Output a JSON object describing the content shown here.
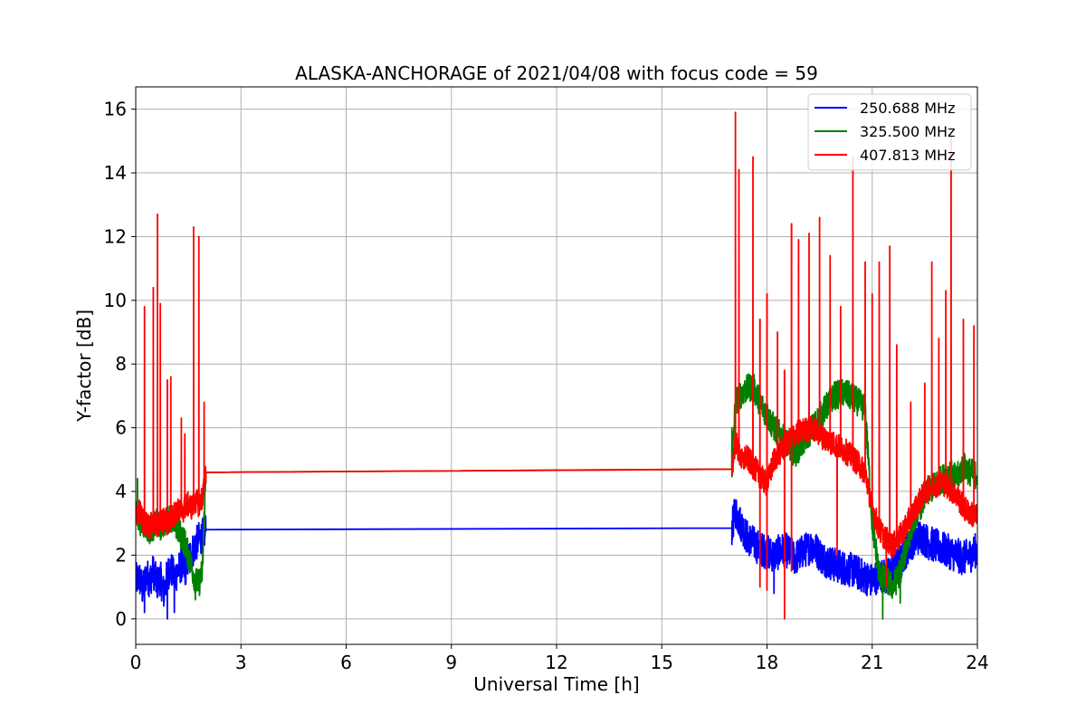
{
  "chart_data": {
    "type": "line",
    "title": "ALASKA-ANCHORAGE of 2021/04/08 with focus code = 59",
    "xlabel": "Universal Time [h]",
    "ylabel": "Y-factor [dB]",
    "xlim": [
      0,
      24
    ],
    "ylim": [
      -0.8,
      16.7
    ],
    "xticks": [
      0,
      3,
      6,
      9,
      12,
      15,
      18,
      21,
      24
    ],
    "yticks": [
      0,
      2,
      4,
      6,
      8,
      10,
      12,
      14,
      16
    ],
    "grid": true,
    "legend_position": "top-right",
    "series": [
      {
        "name": "250.688 MHz",
        "color": "#0000ff",
        "x": [
          0,
          0.1,
          0.2,
          0.3,
          0.4,
          0.5,
          0.6,
          0.7,
          0.8,
          0.9,
          1.0,
          1.1,
          1.2,
          1.3,
          1.4,
          1.5,
          1.6,
          1.7,
          1.8,
          1.9,
          2.0,
          17.0,
          17.1,
          17.2,
          17.3,
          17.4,
          17.6,
          17.8,
          18.0,
          18.2,
          18.5,
          18.8,
          19.0,
          19.3,
          19.6,
          19.9,
          20.2,
          20.5,
          20.8,
          21.0,
          21.2,
          21.4,
          21.6,
          21.8,
          22.0,
          22.2,
          22.4,
          22.6,
          22.8,
          23.0,
          23.2,
          23.4,
          23.6,
          23.8,
          24.0
        ],
        "y": [
          1.2,
          1.3,
          0.9,
          1.4,
          1.2,
          1.5,
          1.1,
          1.3,
          0.8,
          1.4,
          1.6,
          1.3,
          1.5,
          1.7,
          1.5,
          1.9,
          2.1,
          2.3,
          2.5,
          2.6,
          2.8,
          2.85,
          3.4,
          3.1,
          2.9,
          2.6,
          2.4,
          2.2,
          2.1,
          2.0,
          2.2,
          1.9,
          2.1,
          2.3,
          1.9,
          1.7,
          1.6,
          1.5,
          1.3,
          1.2,
          1.4,
          1.3,
          1.6,
          1.8,
          2.2,
          2.5,
          2.6,
          2.4,
          2.3,
          2.2,
          2.1,
          2.0,
          1.9,
          2.0,
          2.2
        ]
      },
      {
        "name": "325.500 MHz",
        "color": "#008000",
        "x": [
          0,
          0.1,
          0.2,
          0.3,
          0.4,
          0.5,
          0.6,
          0.7,
          0.8,
          0.9,
          1.0,
          1.1,
          1.2,
          1.3,
          1.4,
          1.5,
          1.6,
          1.7,
          1.8,
          1.9,
          2.0,
          17.0,
          17.1,
          17.2,
          17.3,
          17.4,
          17.6,
          17.8,
          18.0,
          18.2,
          18.5,
          18.8,
          19.0,
          19.3,
          19.6,
          19.9,
          20.2,
          20.5,
          20.8,
          21.0,
          21.2,
          21.4,
          21.6,
          21.8,
          22.0,
          22.2,
          22.4,
          22.6,
          22.8,
          23.0,
          23.2,
          23.4,
          23.6,
          23.8,
          24.0
        ],
        "y": [
          3.3,
          3.1,
          3.0,
          2.9,
          2.8,
          2.9,
          3.0,
          2.9,
          3.0,
          3.1,
          3.2,
          3.0,
          2.8,
          2.6,
          2.4,
          2.0,
          1.6,
          1.2,
          1.1,
          1.5,
          4.6,
          4.7,
          6.8,
          7.0,
          7.1,
          7.2,
          7.3,
          6.8,
          6.4,
          6.0,
          5.6,
          5.2,
          5.5,
          6.0,
          6.5,
          7.0,
          7.1,
          6.9,
          6.6,
          3.0,
          1.4,
          1.2,
          1.0,
          1.5,
          2.4,
          3.2,
          3.6,
          4.0,
          4.2,
          4.4,
          4.6,
          4.4,
          4.8,
          4.6,
          4.5
        ]
      },
      {
        "name": "407.813 MHz",
        "color": "#ff0000",
        "x": [
          0,
          0.1,
          0.2,
          0.3,
          0.4,
          0.5,
          0.6,
          0.7,
          0.8,
          0.9,
          1.0,
          1.1,
          1.2,
          1.3,
          1.4,
          1.5,
          1.6,
          1.7,
          1.8,
          1.9,
          2.0,
          17.0,
          17.1,
          17.2,
          17.3,
          17.4,
          17.6,
          17.8,
          18.0,
          18.2,
          18.5,
          18.8,
          19.0,
          19.3,
          19.6,
          19.9,
          20.2,
          20.5,
          20.8,
          21.0,
          21.2,
          21.4,
          21.6,
          21.8,
          22.0,
          22.2,
          22.4,
          22.6,
          22.8,
          23.0,
          23.2,
          23.4,
          23.6,
          23.8,
          24.0
        ],
        "y": [
          3.2,
          3.4,
          3.1,
          3.0,
          2.9,
          3.0,
          2.9,
          3.0,
          3.1,
          3.0,
          3.1,
          3.3,
          3.4,
          3.3,
          3.5,
          3.6,
          3.5,
          3.7,
          3.6,
          3.8,
          4.6,
          4.7,
          5.6,
          5.2,
          4.9,
          5.1,
          4.8,
          4.5,
          4.2,
          5.0,
          5.4,
          5.8,
          5.9,
          6.0,
          5.7,
          5.5,
          5.3,
          5.0,
          4.6,
          3.5,
          2.8,
          2.5,
          2.3,
          2.6,
          3.0,
          3.4,
          3.8,
          4.1,
          4.2,
          4.3,
          4.1,
          3.9,
          3.5,
          3.3,
          3.2
        ]
      }
    ],
    "spikes": {
      "407.813 MHz": [
        [
          0.25,
          9.8
        ],
        [
          0.5,
          10.4
        ],
        [
          0.62,
          12.7
        ],
        [
          0.7,
          9.9
        ],
        [
          0.9,
          7.5
        ],
        [
          1.0,
          7.6
        ],
        [
          1.3,
          6.3
        ],
        [
          1.4,
          5.8
        ],
        [
          1.65,
          12.3
        ],
        [
          1.8,
          12.0
        ],
        [
          1.95,
          6.8
        ],
        [
          17.1,
          15.9
        ],
        [
          17.2,
          14.1
        ],
        [
          17.6,
          14.5
        ],
        [
          17.8,
          9.4
        ],
        [
          18.0,
          10.2
        ],
        [
          18.3,
          9.0
        ],
        [
          18.5,
          7.8
        ],
        [
          18.7,
          12.4
        ],
        [
          18.9,
          11.9
        ],
        [
          19.2,
          12.1
        ],
        [
          19.5,
          12.6
        ],
        [
          19.8,
          11.4
        ],
        [
          20.1,
          9.8
        ],
        [
          20.45,
          14.5
        ],
        [
          20.8,
          11.2
        ],
        [
          21.0,
          10.2
        ],
        [
          21.2,
          11.2
        ],
        [
          21.5,
          11.7
        ],
        [
          21.7,
          8.6
        ],
        [
          22.1,
          6.8
        ],
        [
          22.5,
          7.4
        ],
        [
          22.7,
          11.2
        ],
        [
          22.9,
          8.8
        ],
        [
          23.1,
          10.3
        ],
        [
          23.25,
          15.2
        ],
        [
          23.6,
          9.4
        ],
        [
          23.9,
          9.2
        ]
      ],
      "325.500 MHz": [
        [
          0.05,
          4.4
        ],
        [
          17.0,
          6.0
        ],
        [
          17.5,
          7.4
        ]
      ]
    },
    "dips": {
      "407.813 MHz": [
        [
          17.8,
          1.0
        ],
        [
          18.0,
          0.9
        ],
        [
          18.5,
          0.0
        ],
        [
          18.7,
          1.5
        ],
        [
          20.0,
          2.0
        ],
        [
          21.4,
          1.0
        ]
      ],
      "250.688 MHz": [
        [
          0.25,
          0.2
        ],
        [
          0.9,
          0.0
        ],
        [
          1.1,
          0.2
        ],
        [
          18.2,
          0.8
        ],
        [
          21.6,
          0.8
        ]
      ],
      "325.500 MHz": [
        [
          1.7,
          0.6
        ],
        [
          21.3,
          0.0
        ],
        [
          21.8,
          0.5
        ]
      ]
    }
  }
}
